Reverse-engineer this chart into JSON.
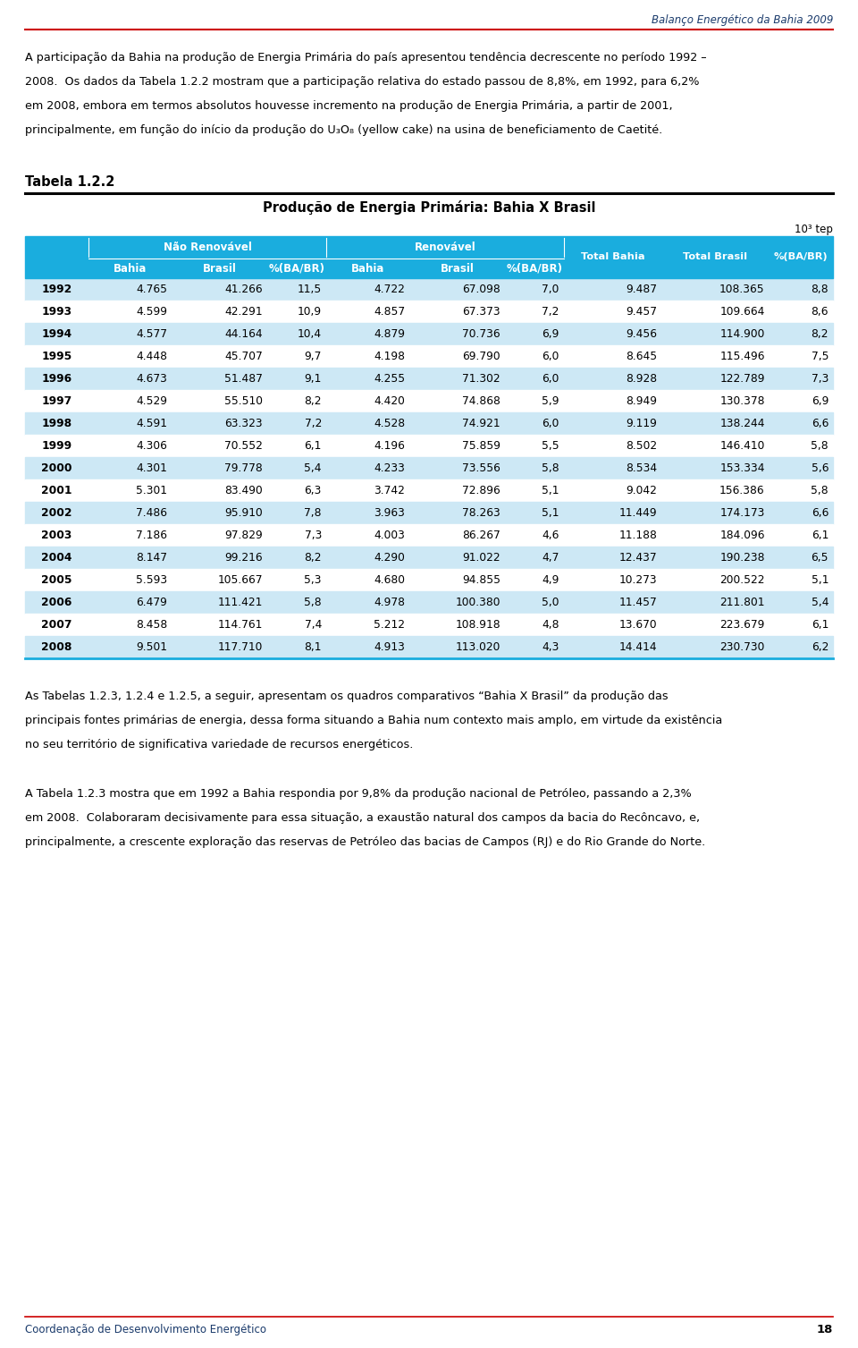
{
  "header_right": "Balanço Energético da Bahia 2009",
  "header_line_color": "#cc0000",
  "header_text_color": "#1a3a6b",
  "page_number": "18",
  "footer_left": "Coordenação de Desenvolvimento Energético",
  "table_label": "Tabela 1.2.2",
  "table_title": "Produção de Energia Primária: Bahia X Brasil",
  "unit_label": "10³ tep",
  "col_header_bg": "#1aadde",
  "col_header_text": "#ffffff",
  "row_odd_bg": "#cde8f5",
  "row_even_bg": "#ffffff",
  "row_text_color": "#000000",
  "col_labels_nr": [
    "Bahia",
    "Brasil",
    "%(BA/BR)"
  ],
  "col_labels_r": [
    "Bahia",
    "Brasil",
    "%(BA/BR)"
  ],
  "col_labels_tot": [
    "Total Bahia",
    "Total Brasil",
    "%(BA/BR)"
  ],
  "nr_header": "Não Renovável",
  "r_header": "Renovável",
  "data": [
    [
      1992,
      "4.765",
      "41.266",
      "11,5",
      "4.722",
      "67.098",
      "7,0",
      "9.487",
      "108.365",
      "8,8"
    ],
    [
      1993,
      "4.599",
      "42.291",
      "10,9",
      "4.857",
      "67.373",
      "7,2",
      "9.457",
      "109.664",
      "8,6"
    ],
    [
      1994,
      "4.577",
      "44.164",
      "10,4",
      "4.879",
      "70.736",
      "6,9",
      "9.456",
      "114.900",
      "8,2"
    ],
    [
      1995,
      "4.448",
      "45.707",
      "9,7",
      "4.198",
      "69.790",
      "6,0",
      "8.645",
      "115.496",
      "7,5"
    ],
    [
      1996,
      "4.673",
      "51.487",
      "9,1",
      "4.255",
      "71.302",
      "6,0",
      "8.928",
      "122.789",
      "7,3"
    ],
    [
      1997,
      "4.529",
      "55.510",
      "8,2",
      "4.420",
      "74.868",
      "5,9",
      "8.949",
      "130.378",
      "6,9"
    ],
    [
      1998,
      "4.591",
      "63.323",
      "7,2",
      "4.528",
      "74.921",
      "6,0",
      "9.119",
      "138.244",
      "6,6"
    ],
    [
      1999,
      "4.306",
      "70.552",
      "6,1",
      "4.196",
      "75.859",
      "5,5",
      "8.502",
      "146.410",
      "5,8"
    ],
    [
      2000,
      "4.301",
      "79.778",
      "5,4",
      "4.233",
      "73.556",
      "5,8",
      "8.534",
      "153.334",
      "5,6"
    ],
    [
      2001,
      "5.301",
      "83.490",
      "6,3",
      "3.742",
      "72.896",
      "5,1",
      "9.042",
      "156.386",
      "5,8"
    ],
    [
      2002,
      "7.486",
      "95.910",
      "7,8",
      "3.963",
      "78.263",
      "5,1",
      "11.449",
      "174.173",
      "6,6"
    ],
    [
      2003,
      "7.186",
      "97.829",
      "7,3",
      "4.003",
      "86.267",
      "4,6",
      "11.188",
      "184.096",
      "6,1"
    ],
    [
      2004,
      "8.147",
      "99.216",
      "8,2",
      "4.290",
      "91.022",
      "4,7",
      "12.437",
      "190.238",
      "6,5"
    ],
    [
      2005,
      "5.593",
      "105.667",
      "5,3",
      "4.680",
      "94.855",
      "4,9",
      "10.273",
      "200.522",
      "5,1"
    ],
    [
      2006,
      "6.479",
      "111.421",
      "5,8",
      "4.978",
      "100.380",
      "5,0",
      "11.457",
      "211.801",
      "5,4"
    ],
    [
      2007,
      "8.458",
      "114.761",
      "7,4",
      "5.212",
      "108.918",
      "4,8",
      "13.670",
      "223.679",
      "6,1"
    ],
    [
      2008,
      "9.501",
      "117.710",
      "8,1",
      "4.913",
      "113.020",
      "4,3",
      "14.414",
      "230.730",
      "6,2"
    ]
  ],
  "para1_lines": [
    "A participação da Bahia na produção de Energia Primária do país apresentou tendência decrescente no período 1992 –",
    "2008.  Os dados da Tabela 1.2.2 mostram que a participação relativa do estado passou de 8,8%, em 1992, para 6,2%",
    "em 2008, embora em termos absolutos houvesse incremento na produção de Energia Primária, a partir de 2001,",
    "principalmente, em função do início da produção do U₃O₈ (yellow cake) na usina de beneficiamento de Caetité."
  ],
  "para2_lines": [
    "As Tabelas 1.2.3, 1.2.4 e 1.2.5, a seguir, apresentam os quadros comparativos “Bahia X Brasil” da produção das",
    "principais fontes primárias de energia, dessa forma situando a Bahia num contexto mais amplo, em virtude da existência",
    "no seu território de significativa variedade de recursos energéticos."
  ],
  "para3_lines": [
    "A Tabela 1.2.3 mostra que em 1992 a Bahia respondia por 9,8% da produção nacional de Petróleo, passando a 2,3%",
    "em 2008.  Colaboraram decisivamente para essa situação, a exaustão natural dos campos da bacia do Recôncavo, e,",
    "principalmente, a crescente exploração das reservas de Petróleo das bacias de Campos (RJ) e do Rio Grande do Norte."
  ]
}
